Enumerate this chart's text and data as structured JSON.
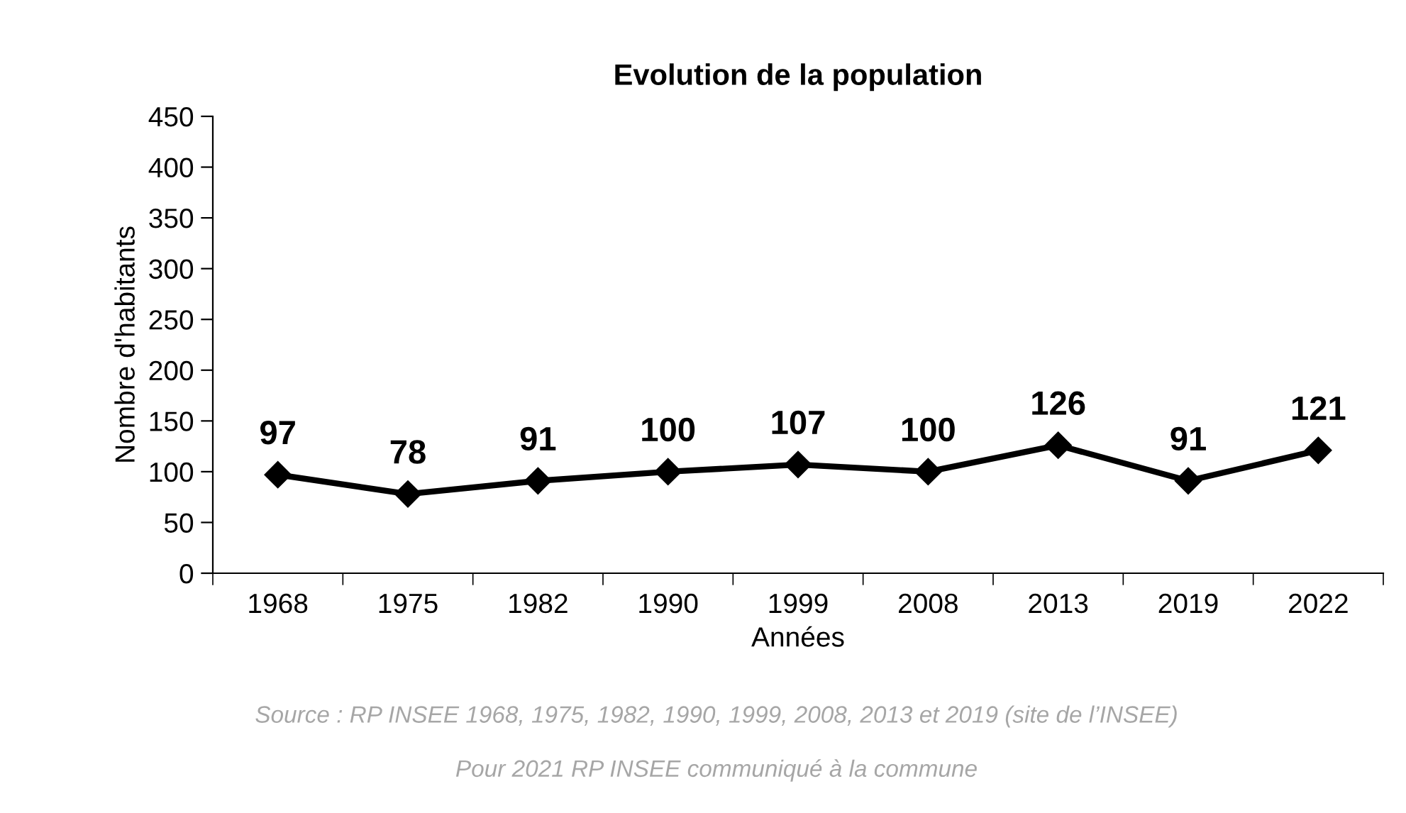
{
  "chart_data": {
    "type": "line",
    "title": "Evolution de la population",
    "xlabel": "Années",
    "ylabel": "Nombre d'habitants",
    "categories": [
      "1968",
      "1975",
      "1982",
      "1990",
      "1999",
      "2008",
      "2013",
      "2019",
      "2022"
    ],
    "series": [
      {
        "color": "#000000",
        "values": [
          97,
          78,
          91,
          100,
          107,
          100,
          126,
          91,
          121
        ]
      }
    ],
    "ylim": [
      0,
      450
    ],
    "yticks": [
      0,
      50,
      100,
      150,
      200,
      250,
      300,
      350,
      400,
      450
    ],
    "grid": false,
    "legend": false,
    "marker": "diamond",
    "line_style": "solid",
    "data_labels": true,
    "annotations": [
      "Source : RP INSEE 1968, 1975, 1982, 1990, 1999, 2008, 2013 et 2019 (site de l’INSEE)",
      "Pour 2021 RP INSEE communiqué à la commune"
    ]
  }
}
